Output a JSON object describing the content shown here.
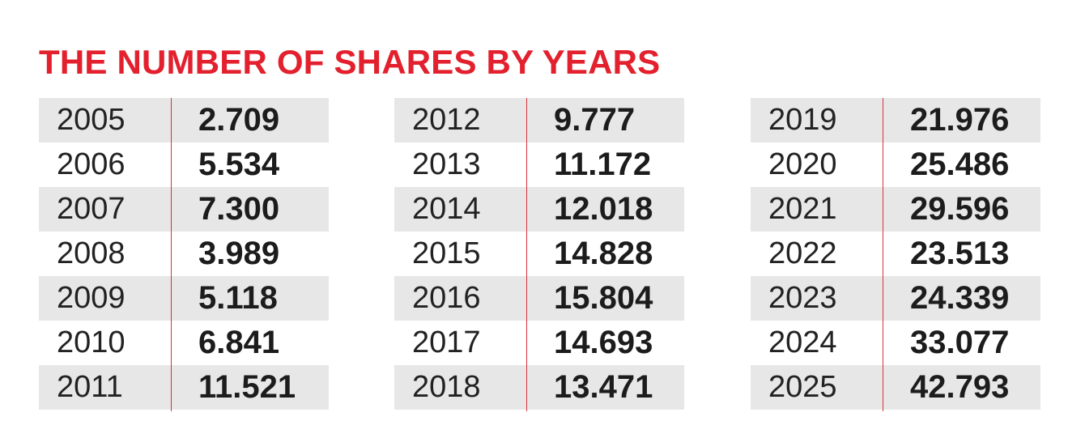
{
  "title": "THE NUMBER OF SHARES BY YEARS",
  "colors": {
    "title": "#e3202d",
    "divider": "#d6333a",
    "row_shaded": "#e6e7e6",
    "text": "#1c1c1c"
  },
  "chart_data": {
    "type": "table",
    "title": "THE NUMBER OF SHARES BY YEARS",
    "columns": [
      {
        "rows": [
          {
            "year": "2005",
            "value": "2.709"
          },
          {
            "year": "2006",
            "value": "5.534"
          },
          {
            "year": "2007",
            "value": "7.300"
          },
          {
            "year": "2008",
            "value": "3.989"
          },
          {
            "year": "2009",
            "value": "5.118"
          },
          {
            "year": "2010",
            "value": "6.841"
          },
          {
            "year": "2011",
            "value": "11.521"
          }
        ]
      },
      {
        "rows": [
          {
            "year": "2012",
            "value": "9.777"
          },
          {
            "year": "2013",
            "value": "11.172"
          },
          {
            "year": "2014",
            "value": "12.018"
          },
          {
            "year": "2015",
            "value": "14.828"
          },
          {
            "year": "2016",
            "value": "15.804"
          },
          {
            "year": "2017",
            "value": "14.693"
          },
          {
            "year": "2018",
            "value": "13.471"
          }
        ]
      },
      {
        "rows": [
          {
            "year": "2019",
            "value": "21.976"
          },
          {
            "year": "2020",
            "value": "25.486"
          },
          {
            "year": "2021",
            "value": "29.596"
          },
          {
            "year": "2022",
            "value": "23.513"
          },
          {
            "year": "2023",
            "value": "24.339"
          },
          {
            "year": "2024",
            "value": "33.077"
          },
          {
            "year": "2025",
            "value": "42.793"
          }
        ]
      }
    ]
  }
}
